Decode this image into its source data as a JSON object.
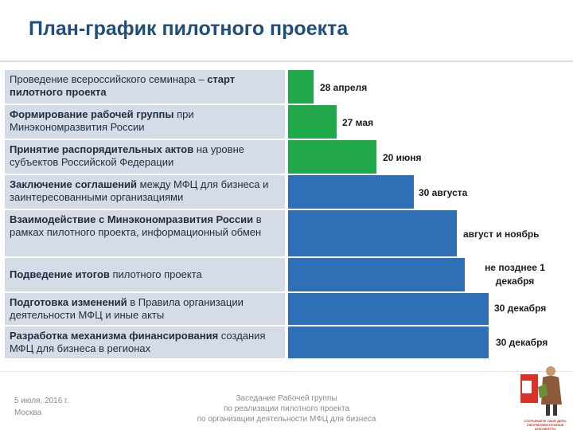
{
  "title": "План-график пилотного проекта",
  "rows": [
    {
      "bold_pre": "",
      "normal": "Проведение всероссийского семинара – ",
      "bold_post": "старт пилотного проекта",
      "date": "28 апреля",
      "color": "#21a84a"
    },
    {
      "bold_pre": "Формирование рабочей группы",
      "normal": " при Минэкономразвития России",
      "bold_post": "",
      "date": "27 мая",
      "color": "#21a84a"
    },
    {
      "bold_pre": "Принятие распорядительных актов",
      "normal": " на уровне субъектов Российской Федерации",
      "bold_post": "",
      "date": "20 июня",
      "color": "#21a84a"
    },
    {
      "bold_pre": "Заключение соглашений",
      "normal": " между МФЦ для бизнеса и заинтересованными организациями",
      "bold_post": "",
      "date": "30 августа",
      "color": "#2f6fb5"
    },
    {
      "bold_pre": "Взаимодействие с Минэкономразвития России",
      "normal": " в рамках пилотного проекта, информационный обмен",
      "bold_post": "",
      "date": "август и ноябрь",
      "color": "#2f6fb5"
    },
    {
      "bold_pre": "Подведение итогов",
      "normal": " пилотного проекта",
      "bold_post": "",
      "date": "не позднее 1 декабря",
      "color": "#2f6fb5"
    },
    {
      "bold_pre": "Подготовка изменений",
      "normal": " в Правила организации деятельности МФЦ  и иные акты",
      "bold_post": "",
      "date": "30 декабря",
      "color": "#2f6fb5"
    },
    {
      "bold_pre": "Разработка механизма финансирования",
      "normal": " создания МФЦ для бизнеса в регионах",
      "bold_post": "",
      "date": "30 декабря",
      "color": "#2f6fb5"
    }
  ],
  "footer": {
    "date": "5 июля, 2016 г.",
    "city": "Москва",
    "line1": "Заседание Рабочей группы",
    "line2": "по реализации пилотного проекта",
    "line3": "по организации деятельности МФЦ для бизнеса"
  },
  "logo_text": "ОТКРЫВАЕТЕ СВОЁ ДЕЛО ОФОРМЛЯЕМ НУЖНЫЕ ДОКУМЕНТЫ"
}
